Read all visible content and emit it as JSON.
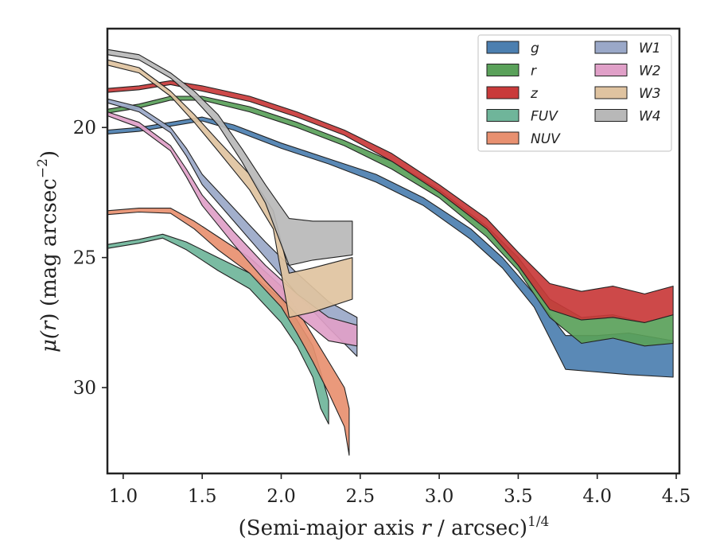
{
  "chart_data": {
    "type": "area",
    "title": "",
    "xlabel": "(Semi-major axis r / arcsec)",
    "xlabel_parts": {
      "prefix": "(Semi-major axis ",
      "var": "r",
      "suffix": " / arcsec)",
      "exponent": "1/4"
    },
    "ylabel": "μ(r) (mag arcsec−2)",
    "ylabel_parts": {
      "mu": "μ(",
      "var": "r",
      "mid": ") (mag arcsec",
      "exponent": "−2",
      "close": ")"
    },
    "xlim": [
      0.9,
      4.52
    ],
    "ylim": [
      33.3,
      16.2
    ],
    "y_inverted": true,
    "xticks": [
      1.0,
      1.5,
      2.0,
      2.5,
      3.0,
      3.5,
      4.0,
      4.5
    ],
    "xtick_labels": [
      "1.0",
      "1.5",
      "2.0",
      "2.5",
      "3.0",
      "3.5",
      "4.0",
      "4.5"
    ],
    "yticks": [
      20,
      25,
      30
    ],
    "ytick_labels": [
      "20",
      "25",
      "30"
    ],
    "grid": false,
    "legend": {
      "placement": "top-right",
      "columns": 2
    },
    "series": [
      {
        "name": "g",
        "color": "#4c7fb0",
        "upper": [
          [
            0.9,
            20.1
          ],
          [
            1.1,
            20.0
          ],
          [
            1.3,
            19.8
          ],
          [
            1.5,
            19.6
          ],
          [
            1.7,
            19.9
          ],
          [
            2.0,
            20.6
          ],
          [
            2.3,
            21.2
          ],
          [
            2.6,
            21.8
          ],
          [
            2.9,
            22.7
          ],
          [
            3.2,
            23.9
          ],
          [
            3.4,
            25.0
          ],
          [
            3.6,
            26.4
          ],
          [
            3.8,
            28.0
          ],
          [
            4.0,
            28.0
          ],
          [
            4.2,
            27.9
          ],
          [
            4.48,
            28.2
          ]
        ],
        "lower": [
          [
            0.9,
            20.25
          ],
          [
            1.1,
            20.15
          ],
          [
            1.3,
            19.95
          ],
          [
            1.5,
            19.75
          ],
          [
            1.7,
            20.1
          ],
          [
            2.0,
            20.8
          ],
          [
            2.3,
            21.4
          ],
          [
            2.6,
            22.1
          ],
          [
            2.9,
            23.0
          ],
          [
            3.2,
            24.3
          ],
          [
            3.4,
            25.4
          ],
          [
            3.6,
            26.9
          ],
          [
            3.8,
            29.3
          ],
          [
            4.0,
            29.4
          ],
          [
            4.2,
            29.5
          ],
          [
            4.48,
            29.6
          ]
        ]
      },
      {
        "name": "r",
        "color": "#5aa15a",
        "upper": [
          [
            0.9,
            19.3
          ],
          [
            1.1,
            19.1
          ],
          [
            1.3,
            18.8
          ],
          [
            1.5,
            18.8
          ],
          [
            1.8,
            19.2
          ],
          [
            2.1,
            19.8
          ],
          [
            2.4,
            20.5
          ],
          [
            2.7,
            21.3
          ],
          [
            3.0,
            22.4
          ],
          [
            3.3,
            23.8
          ],
          [
            3.5,
            25.0
          ],
          [
            3.7,
            26.6
          ],
          [
            3.9,
            27.3
          ],
          [
            4.1,
            27.2
          ],
          [
            4.3,
            27.5
          ],
          [
            4.48,
            27.2
          ]
        ],
        "lower": [
          [
            0.9,
            19.45
          ],
          [
            1.1,
            19.25
          ],
          [
            1.3,
            18.95
          ],
          [
            1.5,
            18.95
          ],
          [
            1.8,
            19.4
          ],
          [
            2.1,
            20.0
          ],
          [
            2.4,
            20.7
          ],
          [
            2.7,
            21.6
          ],
          [
            3.0,
            22.7
          ],
          [
            3.3,
            24.2
          ],
          [
            3.5,
            25.5
          ],
          [
            3.7,
            27.3
          ],
          [
            3.9,
            28.3
          ],
          [
            4.1,
            28.1
          ],
          [
            4.3,
            28.4
          ],
          [
            4.48,
            28.3
          ]
        ]
      },
      {
        "name": "z",
        "color": "#c93a3a",
        "upper": [
          [
            0.9,
            18.5
          ],
          [
            1.1,
            18.4
          ],
          [
            1.3,
            18.2
          ],
          [
            1.5,
            18.4
          ],
          [
            1.8,
            18.8
          ],
          [
            2.1,
            19.4
          ],
          [
            2.4,
            20.1
          ],
          [
            2.7,
            21.0
          ],
          [
            3.0,
            22.2
          ],
          [
            3.3,
            23.5
          ],
          [
            3.5,
            24.8
          ],
          [
            3.7,
            26.0
          ],
          [
            3.9,
            26.3
          ],
          [
            4.1,
            26.1
          ],
          [
            4.3,
            26.4
          ],
          [
            4.48,
            26.1
          ]
        ],
        "lower": [
          [
            0.9,
            18.65
          ],
          [
            1.1,
            18.55
          ],
          [
            1.3,
            18.35
          ],
          [
            1.5,
            18.6
          ],
          [
            1.8,
            19.0
          ],
          [
            2.1,
            19.6
          ],
          [
            2.4,
            20.3
          ],
          [
            2.7,
            21.3
          ],
          [
            3.0,
            22.5
          ],
          [
            3.3,
            23.9
          ],
          [
            3.5,
            25.3
          ],
          [
            3.7,
            27.0
          ],
          [
            3.9,
            27.4
          ],
          [
            4.1,
            27.3
          ],
          [
            4.3,
            27.5
          ],
          [
            4.48,
            27.2
          ]
        ]
      },
      {
        "name": "FUV",
        "color": "#6fb59a",
        "upper": [
          [
            0.9,
            24.5
          ],
          [
            1.1,
            24.3
          ],
          [
            1.25,
            24.1
          ],
          [
            1.4,
            24.4
          ],
          [
            1.6,
            25.0
          ],
          [
            1.8,
            25.6
          ],
          [
            2.0,
            26.6
          ],
          [
            2.1,
            27.4
          ],
          [
            2.2,
            28.4
          ],
          [
            2.25,
            29.4
          ],
          [
            2.3,
            30.5
          ]
        ],
        "lower": [
          [
            0.9,
            24.65
          ],
          [
            1.1,
            24.45
          ],
          [
            1.25,
            24.25
          ],
          [
            1.4,
            24.7
          ],
          [
            1.6,
            25.5
          ],
          [
            1.8,
            26.2
          ],
          [
            2.0,
            27.5
          ],
          [
            2.1,
            28.4
          ],
          [
            2.2,
            29.6
          ],
          [
            2.25,
            30.8
          ],
          [
            2.3,
            31.4
          ]
        ]
      },
      {
        "name": "NUV",
        "color": "#e89070",
        "upper": [
          [
            0.9,
            23.2
          ],
          [
            1.1,
            23.1
          ],
          [
            1.3,
            23.1
          ],
          [
            1.45,
            23.6
          ],
          [
            1.6,
            24.2
          ],
          [
            1.8,
            25.0
          ],
          [
            2.0,
            26.1
          ],
          [
            2.1,
            27.0
          ],
          [
            2.2,
            28.0
          ],
          [
            2.3,
            29.0
          ],
          [
            2.4,
            30.0
          ],
          [
            2.43,
            30.8
          ]
        ],
        "lower": [
          [
            0.9,
            23.35
          ],
          [
            1.1,
            23.25
          ],
          [
            1.3,
            23.3
          ],
          [
            1.45,
            23.9
          ],
          [
            1.6,
            24.7
          ],
          [
            1.8,
            25.6
          ],
          [
            2.0,
            26.9
          ],
          [
            2.1,
            27.9
          ],
          [
            2.2,
            29.0
          ],
          [
            2.3,
            30.2
          ],
          [
            2.4,
            31.5
          ],
          [
            2.43,
            32.6
          ]
        ]
      },
      {
        "name": "W1",
        "color": "#9aa8c8",
        "upper": [
          [
            0.9,
            18.9
          ],
          [
            1.1,
            19.2
          ],
          [
            1.3,
            20.0
          ],
          [
            1.4,
            20.8
          ],
          [
            1.5,
            21.8
          ],
          [
            1.7,
            23.1
          ],
          [
            1.9,
            24.4
          ],
          [
            2.1,
            25.6
          ],
          [
            2.3,
            26.7
          ],
          [
            2.48,
            27.3
          ]
        ],
        "lower": [
          [
            0.9,
            19.05
          ],
          [
            1.1,
            19.4
          ],
          [
            1.3,
            20.2
          ],
          [
            1.4,
            21.1
          ],
          [
            1.5,
            22.2
          ],
          [
            1.7,
            23.6
          ],
          [
            1.9,
            25.0
          ],
          [
            2.1,
            26.4
          ],
          [
            2.3,
            27.7
          ],
          [
            2.48,
            28.8
          ]
        ]
      },
      {
        "name": "W2",
        "color": "#e0a0c8",
        "upper": [
          [
            0.9,
            19.4
          ],
          [
            1.1,
            19.8
          ],
          [
            1.3,
            20.7
          ],
          [
            1.4,
            21.6
          ],
          [
            1.5,
            22.6
          ],
          [
            1.7,
            24.0
          ],
          [
            1.9,
            25.3
          ],
          [
            2.1,
            26.4
          ],
          [
            2.3,
            27.3
          ],
          [
            2.48,
            27.6
          ]
        ],
        "lower": [
          [
            0.9,
            19.55
          ],
          [
            1.1,
            20.0
          ],
          [
            1.3,
            20.9
          ],
          [
            1.4,
            21.9
          ],
          [
            1.5,
            23.0
          ],
          [
            1.7,
            24.5
          ],
          [
            1.9,
            25.9
          ],
          [
            2.1,
            27.2
          ],
          [
            2.3,
            28.2
          ],
          [
            2.48,
            28.4
          ]
        ]
      },
      {
        "name": "W3",
        "color": "#dfc3a0",
        "upper": [
          [
            0.9,
            17.4
          ],
          [
            1.1,
            17.7
          ],
          [
            1.3,
            18.6
          ],
          [
            1.45,
            19.5
          ],
          [
            1.6,
            20.5
          ],
          [
            1.8,
            21.8
          ],
          [
            1.95,
            23.2
          ],
          [
            2.05,
            25.6
          ],
          [
            2.2,
            25.4
          ],
          [
            2.45,
            25.0
          ]
        ],
        "lower": [
          [
            0.9,
            17.6
          ],
          [
            1.1,
            17.9
          ],
          [
            1.3,
            18.8
          ],
          [
            1.45,
            19.8
          ],
          [
            1.6,
            20.9
          ],
          [
            1.8,
            22.4
          ],
          [
            1.95,
            23.9
          ],
          [
            2.05,
            27.3
          ],
          [
            2.2,
            27.1
          ],
          [
            2.45,
            26.6
          ]
        ]
      },
      {
        "name": "W4",
        "color": "#b8b8b8",
        "upper": [
          [
            0.9,
            17.0
          ],
          [
            1.1,
            17.2
          ],
          [
            1.3,
            17.9
          ],
          [
            1.45,
            18.6
          ],
          [
            1.6,
            19.5
          ],
          [
            1.75,
            20.8
          ],
          [
            1.9,
            22.2
          ],
          [
            2.05,
            23.5
          ],
          [
            2.2,
            23.6
          ],
          [
            2.45,
            23.6
          ]
        ],
        "lower": [
          [
            0.9,
            17.2
          ],
          [
            1.1,
            17.4
          ],
          [
            1.3,
            18.1
          ],
          [
            1.45,
            18.9
          ],
          [
            1.6,
            19.9
          ],
          [
            1.75,
            21.3
          ],
          [
            1.9,
            22.9
          ],
          [
            2.05,
            25.3
          ],
          [
            2.2,
            25.1
          ],
          [
            2.45,
            24.9
          ]
        ]
      }
    ]
  }
}
